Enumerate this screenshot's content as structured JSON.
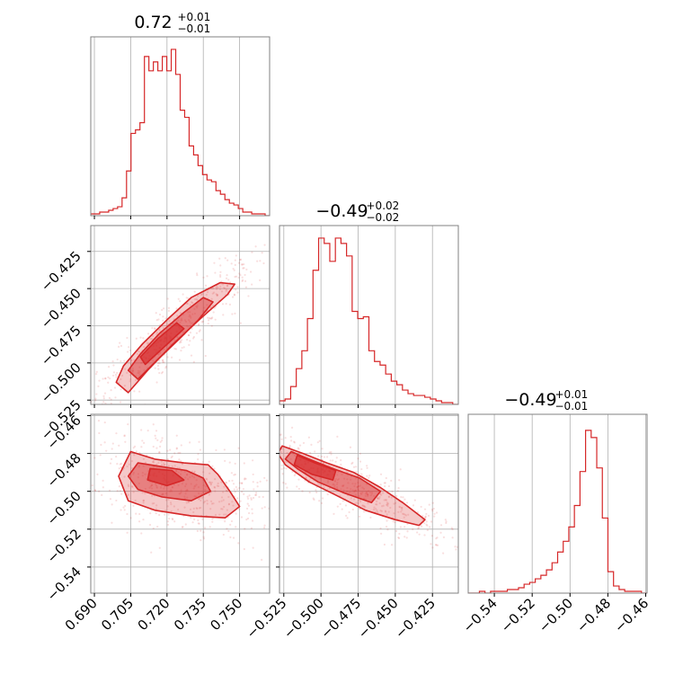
{
  "chart_data": {
    "type": "corner",
    "color": "#d62728",
    "contour_fill": "#f7c6c8",
    "grid": true,
    "parameters": [
      {
        "median": "0.72",
        "plus": "+0.01",
        "minus": "−0.01",
        "range": [
          0.6885,
          0.7624
        ]
      },
      {
        "median": "−0.49",
        "plus": "+0.02",
        "minus": "−0.02",
        "range": [
          -0.5279,
          -0.4076
        ]
      },
      {
        "median": "−0.49",
        "plus": "+0.01",
        "minus": "−0.01",
        "range": [
          -0.5538,
          -0.4593
        ]
      }
    ],
    "ticks": [
      {
        "values": [
          0.69,
          0.705,
          0.72,
          0.735,
          0.75
        ],
        "labels": [
          "0.690",
          "0.705",
          "0.720",
          "0.735",
          "0.750"
        ]
      },
      {
        "values": [
          -0.525,
          -0.5,
          -0.475,
          -0.45,
          -0.425
        ],
        "labels": [
          "−0.525",
          "−0.500",
          "−0.475",
          "−0.450",
          "−0.425"
        ]
      },
      {
        "values": [
          -0.54,
          -0.52,
          -0.5,
          -0.48,
          -0.46
        ],
        "labels": [
          "−0.54",
          "−0.52",
          "−0.50",
          "−0.48",
          "−0.46"
        ]
      }
    ],
    "histograms": [
      {
        "bin_edges": [
          0.6885,
          0.7624
        ],
        "heights": [
          0.01,
          0.01,
          0.02,
          0.02,
          0.03,
          0.04,
          0.05,
          0.1,
          0.25,
          0.46,
          0.48,
          0.52,
          0.89,
          0.81,
          0.86,
          0.81,
          0.89,
          0.81,
          0.93,
          0.79,
          0.59,
          0.55,
          0.39,
          0.34,
          0.28,
          0.23,
          0.2,
          0.19,
          0.14,
          0.12,
          0.09,
          0.07,
          0.06,
          0.04,
          0.02,
          0.02,
          0.01,
          0.01,
          0.01,
          0.0
        ]
      },
      {
        "bin_edges": [
          -0.5279,
          -0.4076
        ],
        "heights": [
          0.02,
          0.03,
          0.1,
          0.2,
          0.3,
          0.48,
          0.75,
          0.93,
          0.9,
          0.8,
          0.93,
          0.9,
          0.83,
          0.52,
          0.48,
          0.49,
          0.3,
          0.24,
          0.22,
          0.17,
          0.13,
          0.11,
          0.08,
          0.06,
          0.05,
          0.05,
          0.04,
          0.03,
          0.02,
          0.01,
          0.01,
          0.0
        ]
      },
      {
        "bin_edges": [
          -0.5538,
          -0.4593
        ],
        "heights": [
          0.0,
          0.0,
          0.01,
          0.0,
          0.01,
          0.01,
          0.01,
          0.02,
          0.02,
          0.03,
          0.05,
          0.06,
          0.08,
          0.1,
          0.13,
          0.17,
          0.23,
          0.29,
          0.37,
          0.49,
          0.68,
          0.91,
          0.87,
          0.7,
          0.42,
          0.12,
          0.04,
          0.02,
          0.01,
          0.01,
          0.01,
          0.0
        ]
      }
    ],
    "contours": [
      {
        "x_param": 0,
        "y_param": 1,
        "levels": [
          [
            [
              0.704,
              -0.52
            ],
            [
              0.712,
              -0.505
            ],
            [
              0.722,
              -0.488
            ],
            [
              0.734,
              -0.47
            ],
            [
              0.745,
              -0.454
            ],
            [
              0.748,
              -0.447
            ],
            [
              0.742,
              -0.446
            ],
            [
              0.73,
              -0.456
            ],
            [
              0.72,
              -0.471
            ],
            [
              0.71,
              -0.487
            ],
            [
              0.702,
              -0.502
            ],
            [
              0.699,
              -0.513
            ]
          ],
          [
            [
              0.708,
              -0.511
            ],
            [
              0.716,
              -0.498
            ],
            [
              0.725,
              -0.484
            ],
            [
              0.733,
              -0.471
            ],
            [
              0.739,
              -0.459
            ],
            [
              0.735,
              -0.456
            ],
            [
              0.727,
              -0.466
            ],
            [
              0.717,
              -0.48
            ],
            [
              0.709,
              -0.494
            ],
            [
              0.704,
              -0.505
            ]
          ],
          [
            [
              0.711,
              -0.501
            ],
            [
              0.719,
              -0.489
            ],
            [
              0.727,
              -0.477
            ],
            [
              0.724,
              -0.473
            ],
            [
              0.716,
              -0.484
            ],
            [
              0.709,
              -0.496
            ]
          ]
        ]
      },
      {
        "x_param": 0,
        "y_param": 2,
        "levels": [
          [
            [
              0.705,
              -0.479
            ],
            [
              0.715,
              -0.483
            ],
            [
              0.727,
              -0.485
            ],
            [
              0.737,
              -0.486
            ],
            [
              0.741,
              -0.491
            ],
            [
              0.746,
              -0.5
            ],
            [
              0.75,
              -0.508
            ],
            [
              0.744,
              -0.514
            ],
            [
              0.73,
              -0.513
            ],
            [
              0.715,
              -0.51
            ],
            [
              0.704,
              -0.505
            ],
            [
              0.7,
              -0.492
            ]
          ],
          [
            [
              0.708,
              -0.485
            ],
            [
              0.718,
              -0.487
            ],
            [
              0.728,
              -0.489
            ],
            [
              0.735,
              -0.493
            ],
            [
              0.738,
              -0.5
            ],
            [
              0.73,
              -0.505
            ],
            [
              0.718,
              -0.503
            ],
            [
              0.708,
              -0.499
            ],
            [
              0.704,
              -0.492
            ]
          ],
          [
            [
              0.713,
              -0.488
            ],
            [
              0.722,
              -0.489
            ],
            [
              0.727,
              -0.494
            ],
            [
              0.72,
              -0.497
            ],
            [
              0.712,
              -0.494
            ]
          ]
        ]
      },
      {
        "x_param": 1,
        "y_param": 2,
        "levels": [
          [
            [
              -0.526,
              -0.476
            ],
            [
              -0.512,
              -0.48
            ],
            [
              -0.496,
              -0.485
            ],
            [
              -0.478,
              -0.49
            ],
            [
              -0.46,
              -0.498
            ],
            [
              -0.445,
              -0.506
            ],
            [
              -0.43,
              -0.515
            ],
            [
              -0.434,
              -0.518
            ],
            [
              -0.45,
              -0.515
            ],
            [
              -0.47,
              -0.51
            ],
            [
              -0.49,
              -0.502
            ],
            [
              -0.508,
              -0.495
            ],
            [
              -0.524,
              -0.486
            ],
            [
              -0.529,
              -0.48
            ]
          ],
          [
            [
              -0.52,
              -0.479
            ],
            [
              -0.508,
              -0.483
            ],
            [
              -0.492,
              -0.488
            ],
            [
              -0.474,
              -0.493
            ],
            [
              -0.46,
              -0.5
            ],
            [
              -0.466,
              -0.506
            ],
            [
              -0.484,
              -0.501
            ],
            [
              -0.502,
              -0.495
            ],
            [
              -0.516,
              -0.488
            ],
            [
              -0.524,
              -0.483
            ]
          ],
          [
            [
              -0.516,
              -0.481
            ],
            [
              -0.504,
              -0.485
            ],
            [
              -0.49,
              -0.489
            ],
            [
              -0.492,
              -0.494
            ],
            [
              -0.506,
              -0.491
            ],
            [
              -0.518,
              -0.486
            ]
          ]
        ]
      }
    ]
  }
}
